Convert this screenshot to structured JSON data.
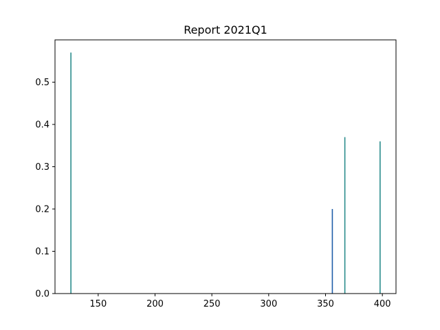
{
  "chart_data": {
    "type": "bar",
    "title": "Report 2021Q1",
    "xlabel": "",
    "ylabel": "",
    "xlim": [
      112,
      412
    ],
    "ylim": [
      0,
      0.6
    ],
    "x_ticks": [
      150,
      200,
      250,
      300,
      350,
      400
    ],
    "y_ticks": [
      0.0,
      0.1,
      0.2,
      0.3,
      0.4,
      0.5
    ],
    "grid": false,
    "legend": "none",
    "bars": [
      {
        "x": 126,
        "value": 0.57,
        "color": "#2a8c8c"
      },
      {
        "x": 356,
        "value": 0.2,
        "color": "#1f5fa8"
      },
      {
        "x": 367,
        "value": 0.37,
        "color": "#2a8c8c"
      },
      {
        "x": 398,
        "value": 0.36,
        "color": "#2a8c8c"
      }
    ]
  }
}
